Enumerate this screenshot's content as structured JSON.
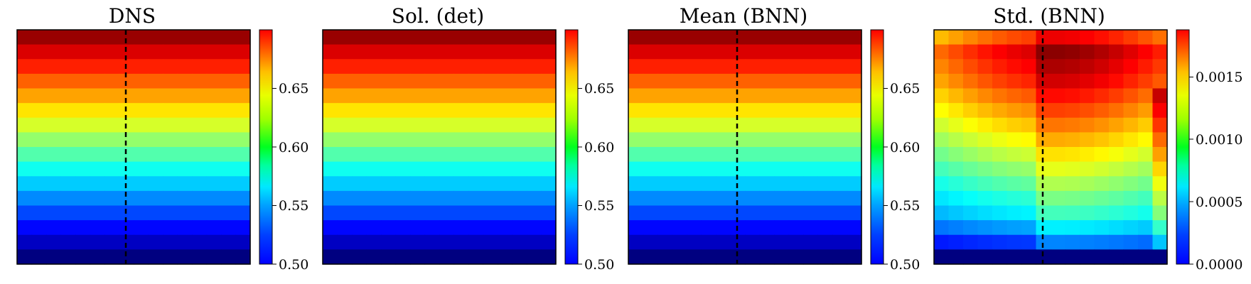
{
  "chart_data": [
    {
      "type": "heatmap",
      "title": "DNS",
      "colorbar": {
        "min": 0.5,
        "max": 0.7,
        "ticks": [
          "0.50",
          "0.55",
          "0.60",
          "0.65"
        ]
      },
      "grid": {
        "rows": 16,
        "cols": 16
      },
      "row_values_top_to_bottom": [
        0.695,
        0.682,
        0.669,
        0.656,
        0.643,
        0.63,
        0.617,
        0.604,
        0.591,
        0.578,
        0.565,
        0.552,
        0.539,
        0.526,
        0.513,
        0.5
      ],
      "dashed_line": true
    },
    {
      "type": "heatmap",
      "title": "Sol. (det)",
      "colorbar": {
        "min": 0.5,
        "max": 0.7,
        "ticks": [
          "0.50",
          "0.55",
          "0.60",
          "0.65"
        ]
      },
      "grid": {
        "rows": 16,
        "cols": 16
      },
      "row_values_top_to_bottom": [
        0.695,
        0.682,
        0.669,
        0.656,
        0.643,
        0.63,
        0.617,
        0.604,
        0.591,
        0.578,
        0.565,
        0.552,
        0.539,
        0.526,
        0.513,
        0.5
      ],
      "dashed_line": false
    },
    {
      "type": "heatmap",
      "title": "Mean (BNN)",
      "colorbar": {
        "min": 0.5,
        "max": 0.7,
        "ticks": [
          "0.50",
          "0.55",
          "0.60",
          "0.65"
        ]
      },
      "grid": {
        "rows": 16,
        "cols": 16
      },
      "row_values_top_to_bottom": [
        0.695,
        0.682,
        0.669,
        0.656,
        0.643,
        0.63,
        0.617,
        0.604,
        0.591,
        0.578,
        0.565,
        0.552,
        0.539,
        0.526,
        0.513,
        0.5
      ],
      "dashed_line": true
    },
    {
      "type": "heatmap",
      "title": "Std. (BNN)",
      "colorbar": {
        "min": 0.0,
        "max": 0.00188,
        "ticks": [
          "0.0000",
          "0.0005",
          "0.0010",
          "0.0015"
        ]
      },
      "grid": {
        "rows": 16,
        "cols": 16
      },
      "row_values_top_to_bottom": [
        0.0016,
        0.00178,
        0.00172,
        0.00165,
        0.00155,
        0.00145,
        0.00135,
        0.00125,
        0.00115,
        0.00105,
        0.00095,
        0.00085,
        0.00075,
        0.0006,
        0.0004,
        0.0
      ],
      "dashed_line": true
    }
  ]
}
